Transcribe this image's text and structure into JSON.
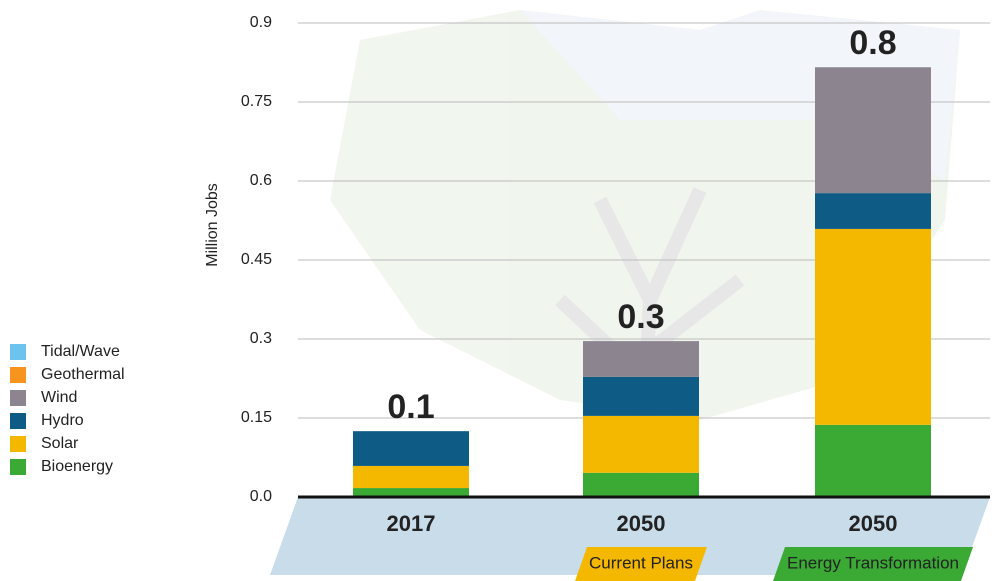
{
  "chart_data": {
    "type": "stacked-bar",
    "y_label": "Million Jobs",
    "categories": [
      "2017",
      "2050",
      "2050"
    ],
    "scenarios": [
      null,
      "Current Plans",
      "Energy Transformation"
    ],
    "totals": [
      0.1,
      0.3,
      0.8
    ],
    "series": [
      {
        "name": "Bioenergy",
        "color": "#3aaa35",
        "values": [
          0.017,
          0.046,
          0.137
        ]
      },
      {
        "name": "Solar",
        "color": "#f5b800",
        "values": [
          0.042,
          0.108,
          0.372
        ]
      },
      {
        "name": "Hydro",
        "color": "#0e5c85",
        "values": [
          0.066,
          0.074,
          0.068
        ]
      },
      {
        "name": "Wind",
        "color": "#8c8590",
        "values": [
          0,
          0.068,
          0.239
        ]
      },
      {
        "name": "Geothermal",
        "color": "#f7941d",
        "values": [
          0,
          0,
          0
        ]
      },
      {
        "name": "Tidal/Wave",
        "color": "#6cc4ee",
        "values": [
          0,
          0,
          0
        ]
      }
    ],
    "ylim": [
      0,
      0.9
    ],
    "yticks": [
      {
        "value": 0,
        "label": "0.0"
      },
      0.15,
      0.3,
      0.45,
      0.6,
      0.75,
      0.9
    ],
    "grid": true
  }
}
